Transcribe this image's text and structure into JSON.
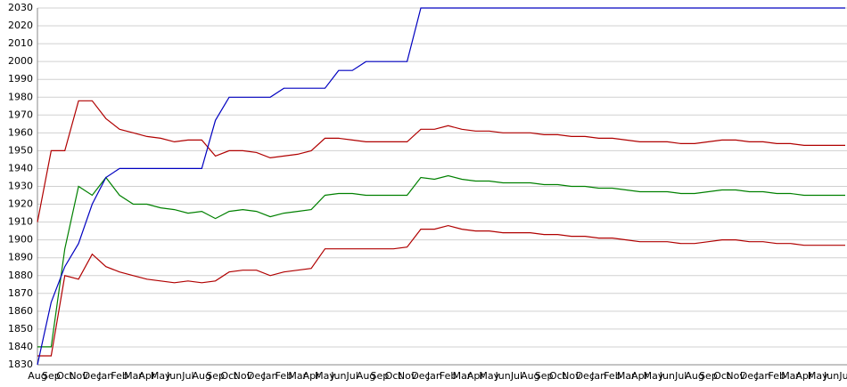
{
  "chart_data": {
    "type": "line",
    "categories": [
      "Aug",
      "Sep",
      "Oct",
      "Nov",
      "Dec",
      "Jan",
      "Feb",
      "Mar",
      "Apr",
      "May",
      "Jun",
      "Jul",
      "Aug",
      "Sep",
      "Oct",
      "Nov",
      "Dec",
      "Jan",
      "Feb",
      "Mar",
      "Apr",
      "May",
      "Jun",
      "Jul",
      "Aug",
      "Sep",
      "Oct",
      "Nov",
      "Dec",
      "Jan",
      "Feb",
      "Mar",
      "Apr",
      "May",
      "Jun",
      "Jul",
      "Aug",
      "Sep",
      "Oct",
      "Nov",
      "Dec",
      "Jan",
      "Feb",
      "Mar",
      "Apr",
      "May",
      "Jun",
      "Jul",
      "Aug",
      "Sep",
      "Oct",
      "Nov",
      "Dec",
      "Jan",
      "Feb",
      "Mar",
      "Apr",
      "May",
      "Jun",
      "Jul"
    ],
    "series": [
      {
        "color": "#b00000",
        "values": [
          1910,
          1950,
          1950,
          1978,
          1978,
          1968,
          1962,
          1960,
          1958,
          1957,
          1955,
          1956,
          1956,
          1947,
          1950,
          1950,
          1949,
          1946,
          1947,
          1948,
          1950,
          1957,
          1957,
          1956,
          1955,
          1955,
          1955,
          1955,
          1962,
          1962,
          1964,
          1962,
          1961,
          1961,
          1960,
          1960,
          1960,
          1959,
          1959,
          1958,
          1958,
          1957,
          1957,
          1956,
          1955,
          1955,
          1955,
          1954,
          1954,
          1955,
          1956,
          1956,
          1955,
          1955,
          1954,
          1954,
          1953,
          1953,
          1953,
          1953
        ]
      },
      {
        "color": "#008000",
        "values": [
          1840,
          1840,
          1895,
          1930,
          1925,
          1935,
          1925,
          1920,
          1920,
          1918,
          1917,
          1915,
          1916,
          1912,
          1916,
          1917,
          1916,
          1913,
          1915,
          1916,
          1917,
          1925,
          1926,
          1926,
          1925,
          1925,
          1925,
          1925,
          1935,
          1934,
          1936,
          1934,
          1933,
          1933,
          1932,
          1932,
          1932,
          1931,
          1931,
          1930,
          1930,
          1929,
          1929,
          1928,
          1927,
          1927,
          1927,
          1926,
          1926,
          1927,
          1928,
          1928,
          1927,
          1927,
          1926,
          1926,
          1925,
          1925,
          1925,
          1925
        ]
      },
      {
        "color": "#b00000",
        "values": [
          1835,
          1835,
          1880,
          1878,
          1892,
          1885,
          1882,
          1880,
          1878,
          1877,
          1876,
          1877,
          1876,
          1877,
          1882,
          1883,
          1883,
          1880,
          1882,
          1883,
          1884,
          1895,
          1895,
          1895,
          1895,
          1895,
          1895,
          1896,
          1906,
          1906,
          1908,
          1906,
          1905,
          1905,
          1904,
          1904,
          1904,
          1903,
          1903,
          1902,
          1902,
          1901,
          1901,
          1900,
          1899,
          1899,
          1899,
          1898,
          1898,
          1899,
          1900,
          1900,
          1899,
          1899,
          1898,
          1898,
          1897,
          1897,
          1897,
          1897
        ]
      },
      {
        "color": "#0000c0",
        "values": [
          1830,
          1865,
          1885,
          1898,
          1920,
          1935,
          1940,
          1940,
          1940,
          1940,
          1940,
          1940,
          1940,
          1967,
          1980,
          1980,
          1980,
          1980,
          1985,
          1985,
          1985,
          1985,
          1995,
          1995,
          2000,
          2000,
          2000,
          2000,
          2030,
          2030,
          2030,
          2030,
          2030,
          2030,
          2030,
          2030,
          2030,
          2030,
          2030,
          2030,
          2030,
          2030,
          2030,
          2030,
          2030,
          2030,
          2030,
          2030,
          2030,
          2030,
          2030,
          2030,
          2030,
          2030,
          2030,
          2030,
          2030,
          2030,
          2030,
          2030
        ]
      }
    ],
    "ylim": [
      1830,
      2030
    ],
    "yticks": [
      1830,
      1840,
      1850,
      1860,
      1870,
      1880,
      1890,
      1900,
      1910,
      1920,
      1930,
      1940,
      1950,
      1960,
      1970,
      1980,
      1990,
      2000,
      2010,
      2020,
      2030
    ],
    "grid": true
  }
}
